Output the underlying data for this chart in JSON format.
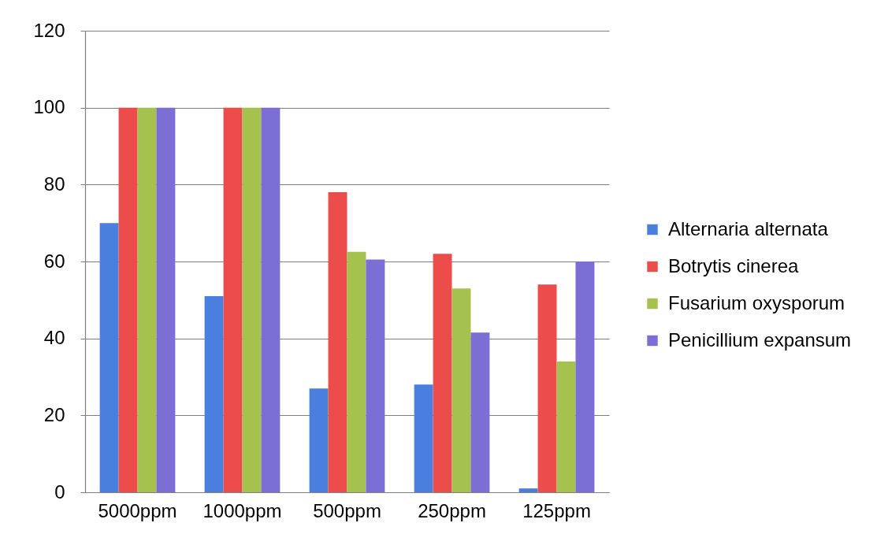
{
  "chart_data": {
    "type": "bar",
    "categories": [
      "5000ppm",
      "1000ppm",
      "500ppm",
      "250ppm",
      "125ppm"
    ],
    "series": [
      {
        "name": "Alternaria alternata",
        "color": "#4a7fe0",
        "values": [
          70,
          51,
          27,
          28,
          1
        ]
      },
      {
        "name": "Botrytis cinerea",
        "color": "#ec4d4a",
        "values": [
          100,
          100,
          78,
          62,
          54
        ]
      },
      {
        "name": "Fusarium oxysporum",
        "color": "#a5c24e",
        "values": [
          100,
          100,
          62.5,
          53,
          34
        ]
      },
      {
        "name": "Penicillium expansum",
        "color": "#7b6fd6",
        "values": [
          100,
          100,
          60.5,
          41.5,
          60
        ]
      }
    ],
    "ylim": [
      0,
      120
    ],
    "yticks": [
      0,
      20,
      40,
      60,
      80,
      100,
      120
    ],
    "grid": "y",
    "legend": "right"
  }
}
